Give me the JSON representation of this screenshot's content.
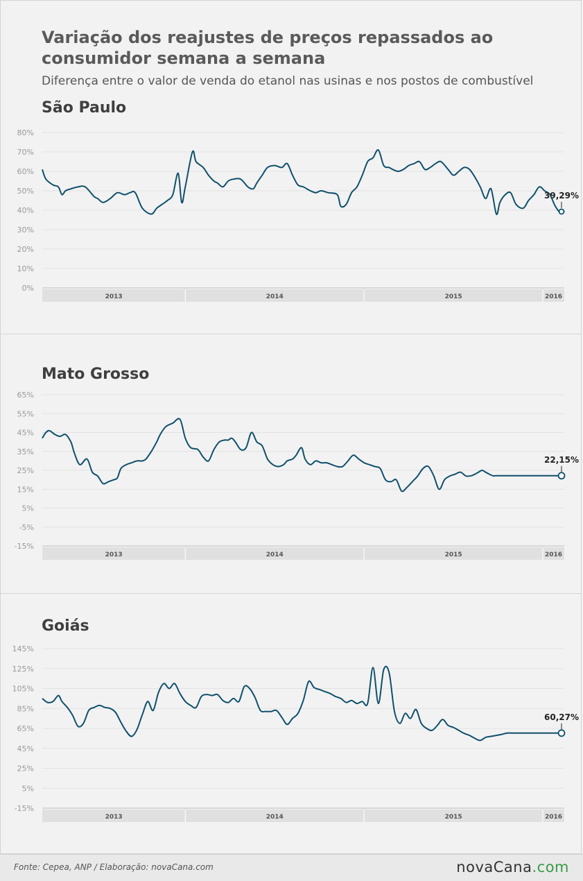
{
  "header": {
    "title": "Variação dos reajustes de preços repassados ao\nconsumidor semana a semana",
    "subtitle": "Diferença entre o valor de venda do etanol nas usinas e nos postos de combustível"
  },
  "footer": {
    "source": "Fonte: Cepea, ANP  /  Elaboração: novaCana.com",
    "logo": {
      "prefix": "nova",
      "main": "Cana",
      "suffix": ".com"
    }
  },
  "colors": {
    "line": "#0e4f6b",
    "grid": "#e2e2e2",
    "axis_band": "#e0e0e0",
    "tick_text": "#999999"
  },
  "chart_data": [
    {
      "type": "line",
      "title": "São Paulo",
      "yticks": [
        "80%",
        "70%",
        "60%",
        "50%",
        "40%",
        "30%",
        "20%",
        "10%",
        "0%"
      ],
      "ytick_values": [
        80,
        70,
        60,
        50,
        40,
        30,
        20,
        10,
        0
      ],
      "ylim": [
        0,
        80
      ],
      "years": [
        "2013",
        "2014",
        "2015",
        "2016"
      ],
      "x_span": [
        2013.2,
        2016.12
      ],
      "year_boundaries": [
        2013.2,
        2014.0,
        2015.0,
        2016.0,
        2016.12
      ],
      "last_label": "39,29%",
      "x": [
        2013.2,
        2013.22,
        2013.26,
        2013.29,
        2013.31,
        2013.33,
        2013.36,
        2013.4,
        2013.44,
        2013.49,
        2013.51,
        2013.54,
        2013.58,
        2013.62,
        2013.66,
        2013.69,
        2013.72,
        2013.76,
        2013.81,
        2013.84,
        2013.87,
        2013.9,
        2013.93,
        2013.96,
        2013.98,
        2014.0,
        2014.04,
        2014.06,
        2014.1,
        2014.13,
        2014.16,
        2014.18,
        2014.21,
        2014.24,
        2014.27,
        2014.31,
        2014.35,
        2014.38,
        2014.4,
        2014.43,
        2014.46,
        2014.5,
        2014.54,
        2014.57,
        2014.6,
        2014.63,
        2014.66,
        2014.7,
        2014.73,
        2014.76,
        2014.8,
        2014.85,
        2014.87,
        2014.9,
        2014.93,
        2014.96,
        2014.99,
        2015.02,
        2015.05,
        2015.08,
        2015.11,
        2015.14,
        2015.16,
        2015.19,
        2015.22,
        2015.25,
        2015.28,
        2015.31,
        2015.34,
        2015.37,
        2015.4,
        2015.43,
        2015.47,
        2015.5,
        2015.53,
        2015.56,
        2015.59,
        2015.62,
        2015.65,
        2015.68,
        2015.71,
        2015.74,
        2015.76,
        2015.79,
        2015.82,
        2015.85,
        2015.89,
        2015.92,
        2015.95,
        2015.98,
        2016.01,
        2016.04,
        2016.07,
        2016.1,
        2016.12
      ],
      "y": [
        61,
        56,
        53,
        52,
        48,
        50,
        51,
        52,
        52,
        47,
        46,
        44,
        46,
        49,
        48,
        49,
        49,
        41,
        38,
        41,
        43,
        45,
        48,
        59,
        44,
        52,
        70,
        65,
        62,
        58,
        55,
        54,
        52,
        55,
        56,
        56,
        52,
        51,
        54,
        58,
        62,
        63,
        62,
        64,
        58,
        53,
        52,
        50,
        49,
        50,
        49,
        48,
        42,
        43,
        49,
        52,
        58,
        65,
        67,
        71,
        63,
        62,
        61,
        60,
        61,
        63,
        64,
        65,
        61,
        62,
        64,
        65,
        61,
        58,
        60,
        62,
        61,
        57,
        52,
        46,
        51,
        38,
        44,
        48,
        49,
        43,
        41,
        45,
        48,
        52,
        50,
        48,
        42,
        38.5,
        39.29
      ]
    },
    {
      "type": "line",
      "title": "Mato Grosso",
      "yticks": [
        "65%",
        "55%",
        "45%",
        "35%",
        "25%",
        "15%",
        "5%",
        "-5%",
        "-15%"
      ],
      "ytick_values": [
        65,
        55,
        45,
        35,
        25,
        15,
        5,
        -5,
        -15
      ],
      "ylim": [
        -15,
        65
      ],
      "years": [
        "2013",
        "2014",
        "2015",
        "2016"
      ],
      "x_span": [
        2013.2,
        2016.12
      ],
      "year_boundaries": [
        2013.2,
        2014.0,
        2015.0,
        2016.0,
        2016.12
      ],
      "last_label": "22,15%",
      "x": [
        2013.2,
        2013.22,
        2013.24,
        2013.27,
        2013.3,
        2013.33,
        2013.36,
        2013.38,
        2013.41,
        2013.45,
        2013.48,
        2013.51,
        2013.54,
        2013.57,
        2013.6,
        2013.62,
        2013.64,
        2013.67,
        2013.7,
        2013.73,
        2013.76,
        2013.78,
        2013.81,
        2013.84,
        2013.86,
        2013.89,
        2013.93,
        2013.97,
        2014.0,
        2014.03,
        2014.07,
        2014.1,
        2014.13,
        2014.16,
        2014.19,
        2014.22,
        2014.24,
        2014.26,
        2014.28,
        2014.31,
        2014.34,
        2014.37,
        2014.4,
        2014.43,
        2014.46,
        2014.49,
        2014.52,
        2014.55,
        2014.57,
        2014.6,
        2014.62,
        2014.65,
        2014.67,
        2014.7,
        2014.73,
        2014.76,
        2014.79,
        2014.82,
        2014.85,
        2014.88,
        2014.91,
        2014.94,
        2014.97,
        2015.0,
        2015.03,
        2015.06,
        2015.09,
        2015.12,
        2015.15,
        2015.18,
        2015.21,
        2015.24,
        2015.27,
        2015.3,
        2015.33,
        2015.36,
        2015.39,
        2015.42,
        2015.45,
        2015.48,
        2015.51,
        2015.54,
        2015.57,
        2015.6,
        2015.62,
        2015.64,
        2015.66,
        2015.68,
        2015.7,
        2015.72,
        2015.74,
        2015.77,
        2015.8,
        2015.83,
        2015.86,
        2015.89,
        2015.92,
        2015.95,
        2015.98,
        2016.0,
        2016.02,
        2016.04,
        2016.06,
        2016.08,
        2016.1,
        2016.12
      ],
      "y": [
        42,
        45,
        46,
        44,
        43,
        44,
        40,
        34,
        28,
        31,
        24,
        22,
        18,
        19,
        20,
        21,
        26,
        28,
        29,
        30,
        30,
        31,
        35,
        40,
        44,
        48,
        50,
        52,
        42,
        37,
        36,
        32,
        30,
        36,
        40,
        41,
        41,
        42,
        40,
        36,
        37,
        45,
        40,
        38,
        31,
        28,
        27,
        28,
        30,
        31,
        33,
        37,
        31,
        28,
        30,
        29,
        29,
        28,
        27,
        27,
        30,
        33,
        31,
        29,
        28,
        27,
        26,
        20,
        19,
        20,
        14,
        16,
        19,
        22,
        26,
        27,
        22,
        15,
        20,
        22,
        23,
        24,
        22,
        22.15,
        23,
        24,
        25,
        24,
        23,
        22.15,
        22.15,
        22.15,
        22.15,
        22.15,
        22.15,
        22.15,
        22.15,
        22.15,
        22.15,
        22.15,
        22.15,
        22.15,
        22.15,
        22.15,
        22.15,
        22.15
      ]
    },
    {
      "type": "line",
      "title": "Goiás",
      "yticks": [
        "145%",
        "125%",
        "105%",
        "85%",
        "65%",
        "45%",
        "25%",
        "5%",
        "-15%"
      ],
      "ytick_values": [
        145,
        125,
        105,
        85,
        65,
        45,
        25,
        5,
        -15
      ],
      "ylim": [
        -15,
        145
      ],
      "years": [
        "2013",
        "2014",
        "2015",
        "2016"
      ],
      "x_span": [
        2013.2,
        2016.12
      ],
      "year_boundaries": [
        2013.2,
        2014.0,
        2015.0,
        2016.0,
        2016.12
      ],
      "last_label": "60,27%",
      "x": [
        2013.2,
        2013.23,
        2013.26,
        2013.29,
        2013.31,
        2013.34,
        2013.37,
        2013.4,
        2013.43,
        2013.46,
        2013.49,
        2013.52,
        2013.55,
        2013.58,
        2013.61,
        2013.64,
        2013.67,
        2013.7,
        2013.73,
        2013.76,
        2013.79,
        2013.82,
        2013.85,
        2013.88,
        2013.91,
        2013.94,
        2013.97,
        2014.0,
        2014.03,
        2014.06,
        2014.09,
        2014.12,
        2014.15,
        2014.18,
        2014.21,
        2014.24,
        2014.27,
        2014.3,
        2014.33,
        2014.36,
        2014.39,
        2014.42,
        2014.45,
        2014.48,
        2014.51,
        2014.54,
        2014.57,
        2014.6,
        2014.63,
        2014.66,
        2014.69,
        2014.72,
        2014.75,
        2014.78,
        2014.81,
        2014.84,
        2014.87,
        2014.9,
        2014.93,
        2014.96,
        2014.99,
        2015.02,
        2015.05,
        2015.08,
        2015.11,
        2015.14,
        2015.17,
        2015.2,
        2015.23,
        2015.26,
        2015.29,
        2015.32,
        2015.35,
        2015.38,
        2015.41,
        2015.44,
        2015.47,
        2015.5,
        2015.53,
        2015.56,
        2015.59,
        2015.62,
        2015.65,
        2015.68,
        2015.71,
        2015.74,
        2015.77,
        2015.8,
        2015.83,
        2015.86,
        2015.89,
        2015.92,
        2015.95,
        2015.98,
        2016.01,
        2016.04,
        2016.07,
        2016.1,
        2016.12
      ],
      "y": [
        95,
        91,
        92,
        98,
        92,
        86,
        78,
        67,
        70,
        83,
        86,
        88,
        86,
        85,
        81,
        71,
        62,
        57,
        64,
        79,
        92,
        83,
        101,
        110,
        105,
        110,
        100,
        92,
        88,
        86,
        97,
        99,
        98,
        99,
        93,
        91,
        95,
        92,
        107,
        105,
        96,
        83,
        82,
        82,
        83,
        76,
        69,
        75,
        80,
        93,
        112,
        106,
        104,
        102,
        100,
        97,
        95,
        91,
        93,
        90,
        92,
        90,
        126,
        90,
        124,
        121,
        82,
        70,
        80,
        75,
        84,
        70,
        65,
        63,
        68,
        74,
        68,
        66,
        63,
        60,
        58,
        55,
        53,
        56,
        57,
        58,
        59,
        60.27,
        60.27,
        60.27,
        60.27,
        60.27,
        60.27,
        60.27,
        60.27,
        60.27,
        60.27,
        60.27,
        60.27
      ]
    }
  ]
}
